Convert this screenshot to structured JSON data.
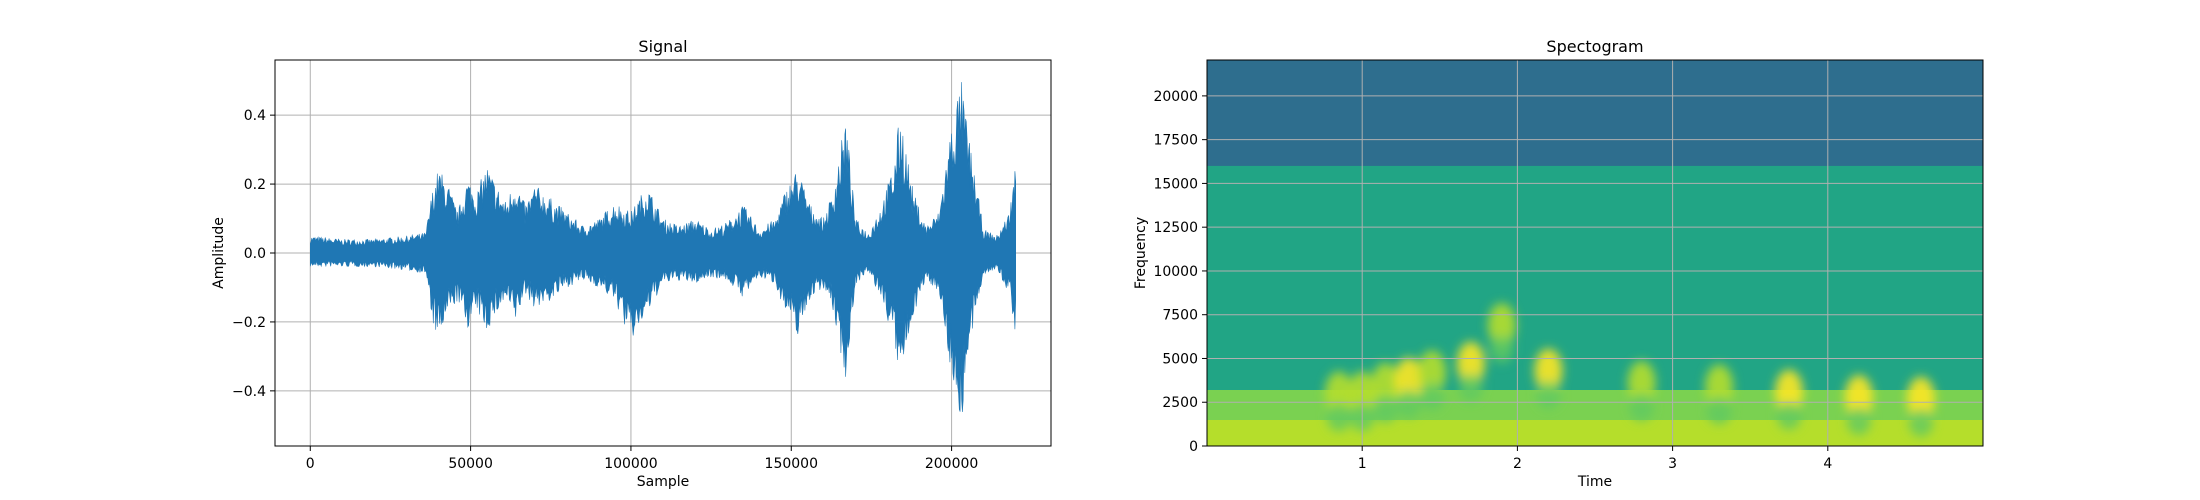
{
  "chart_data": [
    {
      "type": "line",
      "title": "Signal",
      "xlabel": "Sample",
      "ylabel": "Amplitude",
      "xlim": [
        -11000,
        231000
      ],
      "ylim": [
        -0.56,
        0.56
      ],
      "xticks": [
        0,
        50000,
        100000,
        150000,
        200000
      ],
      "xtick_labels": [
        "0",
        "50000",
        "100000",
        "150000",
        "200000"
      ],
      "yticks": [
        -0.4,
        -0.2,
        0.0,
        0.2,
        0.4
      ],
      "ytick_labels": [
        "−0.4",
        "−0.2",
        "0.0",
        "0.2",
        "0.4"
      ],
      "grid": true,
      "color": "#1f77b4",
      "series": [
        {
          "x": [
            0,
            10000,
            20000,
            30000,
            36000,
            38000,
            40000,
            43000,
            46000,
            49000,
            52000,
            55000,
            58000,
            61000,
            64000,
            67000,
            70000,
            75000,
            80000,
            85000,
            90000,
            95000,
            100000,
            105000,
            110000,
            115000,
            120000,
            125000,
            130000,
            135000,
            140000,
            145000,
            148000,
            152000,
            156000,
            160000,
            163000,
            167000,
            170000,
            174000,
            178000,
            182000,
            184000,
            188000,
            192000,
            196000,
            200000,
            203000,
            206000,
            210000,
            214000,
            218000,
            220000
          ],
          "upper": [
            0.05,
            0.04,
            0.04,
            0.05,
            0.06,
            0.18,
            0.25,
            0.2,
            0.12,
            0.22,
            0.18,
            0.26,
            0.2,
            0.15,
            0.22,
            0.14,
            0.2,
            0.16,
            0.12,
            0.08,
            0.1,
            0.15,
            0.12,
            0.2,
            0.1,
            0.08,
            0.1,
            0.07,
            0.09,
            0.14,
            0.07,
            0.1,
            0.18,
            0.25,
            0.14,
            0.1,
            0.18,
            0.4,
            0.1,
            0.06,
            0.14,
            0.26,
            0.42,
            0.18,
            0.08,
            0.12,
            0.38,
            0.51,
            0.3,
            0.07,
            0.05,
            0.12,
            0.27
          ],
          "lower": [
            -0.04,
            -0.04,
            -0.04,
            -0.05,
            -0.06,
            -0.2,
            -0.26,
            -0.18,
            -0.14,
            -0.22,
            -0.17,
            -0.23,
            -0.18,
            -0.14,
            -0.2,
            -0.12,
            -0.16,
            -0.14,
            -0.1,
            -0.08,
            -0.1,
            -0.14,
            -0.26,
            -0.18,
            -0.09,
            -0.08,
            -0.09,
            -0.07,
            -0.08,
            -0.13,
            -0.07,
            -0.09,
            -0.17,
            -0.24,
            -0.13,
            -0.1,
            -0.17,
            -0.37,
            -0.09,
            -0.06,
            -0.13,
            -0.26,
            -0.38,
            -0.18,
            -0.08,
            -0.11,
            -0.36,
            -0.5,
            -0.26,
            -0.06,
            -0.05,
            -0.12,
            -0.24
          ]
        }
      ]
    },
    {
      "type": "heatmap",
      "title": "Spectogram",
      "xlabel": "Time",
      "ylabel": "Frequency",
      "xlim": [
        0,
        5
      ],
      "ylim": [
        0,
        22050
      ],
      "xticks": [
        1,
        2,
        3,
        4
      ],
      "xtick_labels": [
        "1",
        "2",
        "3",
        "4"
      ],
      "yticks": [
        0,
        2500,
        5000,
        7500,
        10000,
        12500,
        15000,
        17500,
        20000
      ],
      "ytick_labels": [
        "0",
        "2500",
        "5000",
        "7500",
        "10000",
        "12500",
        "15000",
        "17500",
        "20000"
      ],
      "grid": true,
      "colormap": [
        "#2e6e8e",
        "#20a386",
        "#5ec962",
        "#b5de2b",
        "#fde725"
      ],
      "cutoff_frequency": 16000,
      "bright_features": [
        {
          "t": 0.85,
          "f": 3000,
          "level": 0.85
        },
        {
          "t": 1.0,
          "f": 3000,
          "level": 0.9
        },
        {
          "t": 1.15,
          "f": 3500,
          "level": 0.9
        },
        {
          "t": 1.3,
          "f": 3800,
          "level": 0.95
        },
        {
          "t": 1.45,
          "f": 4200,
          "level": 0.9
        },
        {
          "t": 1.7,
          "f": 4700,
          "level": 1.0
        },
        {
          "t": 1.9,
          "f": 6900,
          "level": 0.85
        },
        {
          "t": 2.2,
          "f": 4300,
          "level": 1.0
        },
        {
          "t": 2.8,
          "f": 3600,
          "level": 0.9
        },
        {
          "t": 3.3,
          "f": 3400,
          "level": 0.9
        },
        {
          "t": 3.75,
          "f": 3100,
          "level": 0.95
        },
        {
          "t": 4.2,
          "f": 2800,
          "level": 1.0
        },
        {
          "t": 4.6,
          "f": 2700,
          "level": 1.0
        }
      ]
    }
  ]
}
